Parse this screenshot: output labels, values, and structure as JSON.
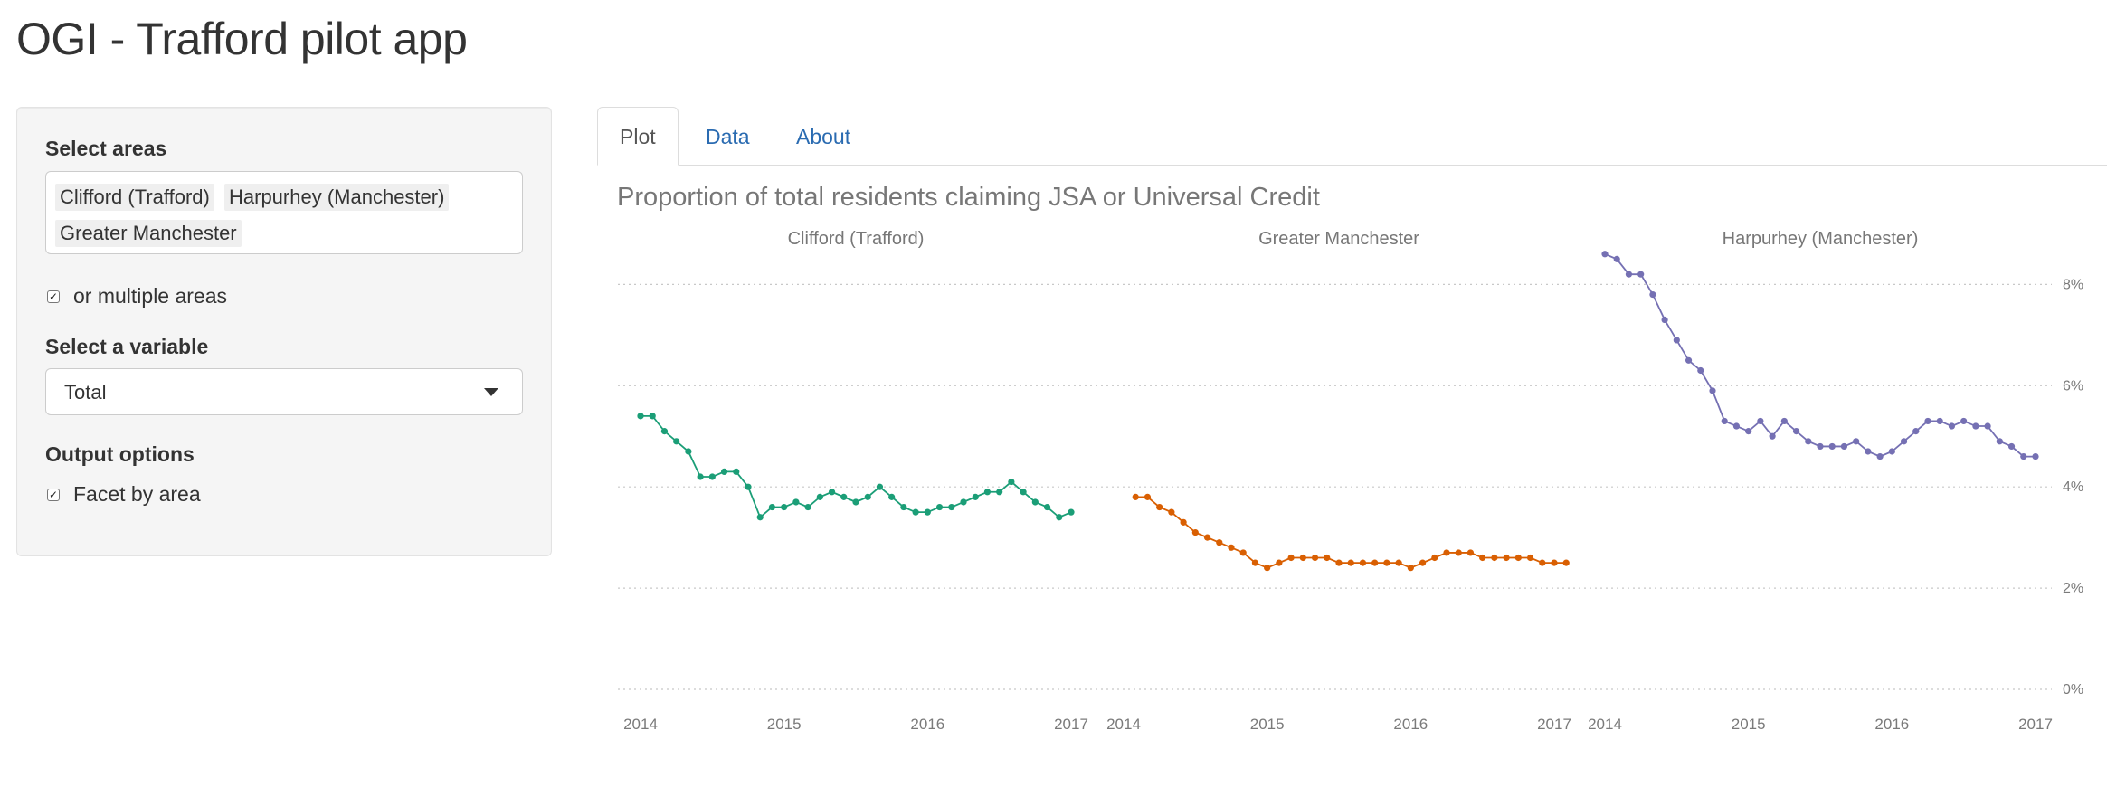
{
  "app": {
    "title": "OGI - Trafford pilot app"
  },
  "sidebar": {
    "areas_label": "Select areas",
    "selected_areas": [
      "Clifford (Trafford)",
      "Harpurhey (Manchester)",
      "Greater Manchester"
    ],
    "multiple_areas_label": "or multiple areas",
    "multiple_areas_checked": true,
    "variable_label": "Select a variable",
    "variable_value": "Total",
    "output_label": "Output options",
    "facet_label": "Facet by area",
    "facet_checked": true
  },
  "tabs": [
    {
      "label": "Plot",
      "active": true
    },
    {
      "label": "Data",
      "active": false
    },
    {
      "label": "About",
      "active": false
    }
  ],
  "icons": {
    "dropdown": "caret-down-icon",
    "check": "check-icon"
  },
  "chart_data": {
    "type": "line",
    "title": "Proportion of total residents claiming JSA or Universal Credit",
    "xlabel": "",
    "ylabel": "",
    "ylim": [
      0,
      8.9
    ],
    "yticks": [
      "0%",
      "2%",
      "4%",
      "6%",
      "8%"
    ],
    "ytick_values": [
      0,
      2,
      4,
      6,
      8
    ],
    "xticks": [
      "2014",
      "2015",
      "2016",
      "2017"
    ],
    "xtick_values": [
      0,
      12,
      24,
      36
    ],
    "xlim": [
      0,
      36
    ],
    "grid": true,
    "legend": "none",
    "facets": [
      {
        "name": "Clifford (Trafford)",
        "color": "#1b9e77",
        "x_start": 0,
        "values": [
          5.4,
          5.4,
          5.1,
          4.9,
          4.7,
          4.2,
          4.2,
          4.3,
          4.3,
          4.0,
          3.4,
          3.6,
          3.6,
          3.7,
          3.6,
          3.8,
          3.9,
          3.8,
          3.7,
          3.8,
          4.0,
          3.8,
          3.6,
          3.5,
          3.5,
          3.6,
          3.6,
          3.7,
          3.8,
          3.9,
          3.9,
          4.1,
          3.9,
          3.7,
          3.6,
          3.4,
          3.5
        ]
      },
      {
        "name": "Greater Manchester",
        "color": "#d95f02",
        "x_start": 1,
        "values": [
          3.8,
          3.8,
          3.6,
          3.5,
          3.3,
          3.1,
          3.0,
          2.9,
          2.8,
          2.7,
          2.5,
          2.4,
          2.5,
          2.6,
          2.6,
          2.6,
          2.6,
          2.5,
          2.5,
          2.5,
          2.5,
          2.5,
          2.5,
          2.4,
          2.5,
          2.6,
          2.7,
          2.7,
          2.7,
          2.6,
          2.6,
          2.6,
          2.6,
          2.6,
          2.5,
          2.5,
          2.5
        ]
      },
      {
        "name": "Harpurhey (Manchester)",
        "color": "#7570b3",
        "x_start": 0,
        "values": [
          8.6,
          8.5,
          8.2,
          8.2,
          7.8,
          7.3,
          6.9,
          6.5,
          6.3,
          5.9,
          5.3,
          5.2,
          5.1,
          5.3,
          5.0,
          5.3,
          5.1,
          4.9,
          4.8,
          4.8,
          4.8,
          4.9,
          4.7,
          4.6,
          4.7,
          4.9,
          5.1,
          5.3,
          5.3,
          5.2,
          5.3,
          5.2,
          5.2,
          4.9,
          4.8,
          4.6,
          4.6
        ]
      }
    ]
  }
}
